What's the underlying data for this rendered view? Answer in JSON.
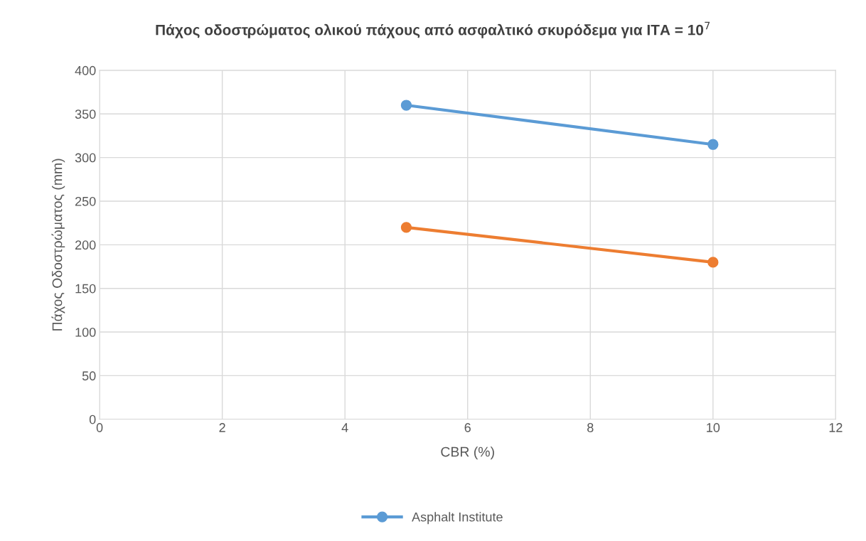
{
  "chart_data": {
    "type": "line",
    "title": "Πάχος οδοστρώματος ολικού πάχους από ασφαλτικό σκυρόδεμα για ΙΤΑ = 10$^{7}$",
    "xlabel": "CBR (%)",
    "ylabel": "Πάχος Οδοστρώματος (mm)",
    "x": [
      5,
      10
    ],
    "series": [
      {
        "name": "Asphalt Institute",
        "color": "#5b9bd5",
        "values": [
          360,
          315
        ]
      },
      {
        "color": "#ed7d31",
        "values": [
          220,
          180
        ]
      }
    ],
    "xlim": [
      0,
      12
    ],
    "xticks": [
      0,
      2,
      4,
      6,
      8,
      10,
      12
    ],
    "ylim": [
      0,
      400
    ],
    "yticks": [
      0,
      50,
      100,
      150,
      200,
      250,
      300,
      350,
      400
    ],
    "grid": true,
    "legend": "bottom",
    "marker": "circle",
    "line_style": "solid"
  }
}
